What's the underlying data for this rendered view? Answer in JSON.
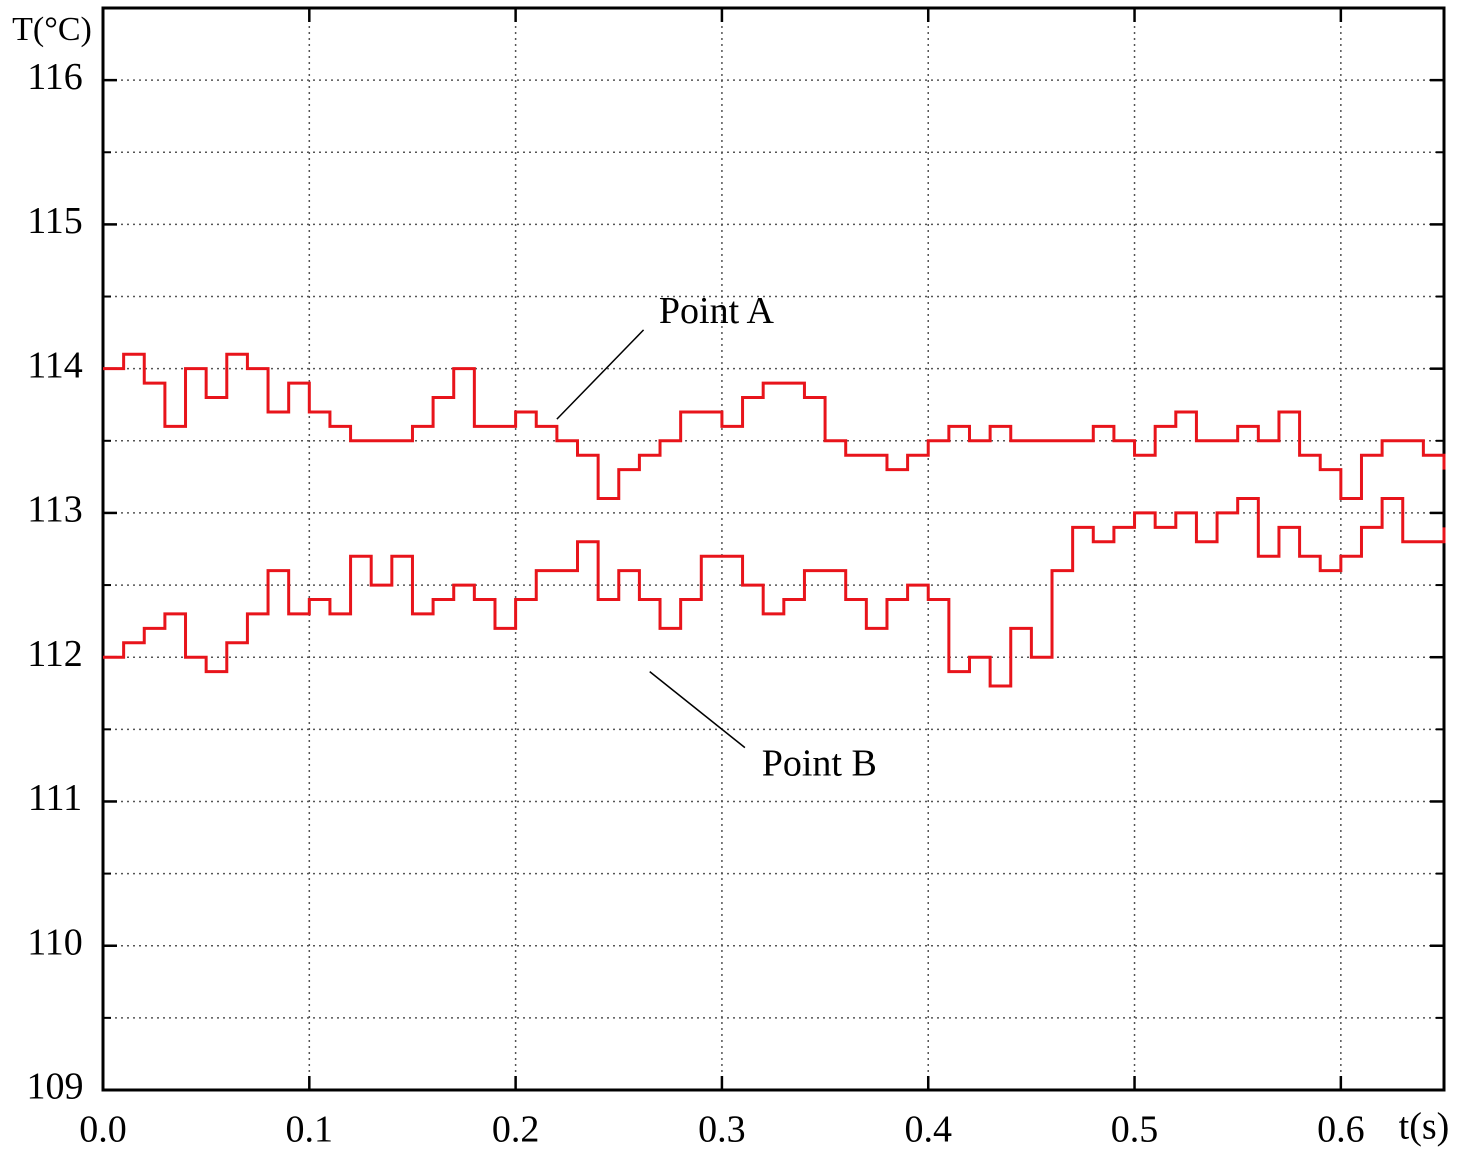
{
  "chart_data": {
    "type": "step",
    "y_label": "T(°C)",
    "x_label": "t(s)",
    "x": [
      0,
      0.01,
      0.02,
      0.03,
      0.04,
      0.05,
      0.06,
      0.07,
      0.08,
      0.09,
      0.1,
      0.11,
      0.12,
      0.13,
      0.14,
      0.15,
      0.16,
      0.17,
      0.18,
      0.19,
      0.2,
      0.21,
      0.22,
      0.23,
      0.24,
      0.25,
      0.26,
      0.27,
      0.28,
      0.29,
      0.3,
      0.31,
      0.32,
      0.33,
      0.34,
      0.35,
      0.36,
      0.37,
      0.38,
      0.39,
      0.4,
      0.41,
      0.42,
      0.43,
      0.44,
      0.45,
      0.46,
      0.47,
      0.48,
      0.49,
      0.5,
      0.51,
      0.52,
      0.53,
      0.54,
      0.55,
      0.56,
      0.57,
      0.58,
      0.59,
      0.6,
      0.61,
      0.62,
      0.63,
      0.64,
      0.65
    ],
    "series": [
      {
        "color": "#e8141b",
        "values": [
          114.0,
          114.1,
          113.9,
          113.6,
          114.0,
          113.8,
          114.1,
          114.0,
          113.7,
          113.9,
          113.7,
          113.6,
          113.5,
          113.5,
          113.5,
          113.6,
          113.8,
          114.0,
          113.6,
          113.6,
          113.7,
          113.6,
          113.5,
          113.4,
          113.1,
          113.3,
          113.4,
          113.5,
          113.7,
          113.7,
          113.6,
          113.8,
          113.9,
          113.9,
          113.8,
          113.5,
          113.4,
          113.4,
          113.3,
          113.4,
          113.5,
          113.6,
          113.5,
          113.6,
          113.5,
          113.5,
          113.5,
          113.5,
          113.6,
          113.5,
          113.4,
          113.6,
          113.7,
          113.5,
          113.5,
          113.6,
          113.5,
          113.7,
          113.4,
          113.3,
          113.1,
          113.4,
          113.5,
          113.5,
          113.4,
          113.3
        ]
      },
      {
        "color": "#e8141b",
        "values": [
          112.0,
          112.1,
          112.2,
          112.3,
          112.0,
          111.9,
          112.1,
          112.3,
          112.6,
          112.3,
          112.4,
          112.3,
          112.7,
          112.5,
          112.7,
          112.3,
          112.4,
          112.5,
          112.4,
          112.2,
          112.4,
          112.6,
          112.6,
          112.8,
          112.4,
          112.6,
          112.4,
          112.2,
          112.4,
          112.7,
          112.7,
          112.5,
          112.3,
          112.4,
          112.6,
          112.6,
          112.4,
          112.2,
          112.4,
          112.5,
          112.4,
          111.9,
          112.0,
          111.8,
          112.2,
          112.0,
          112.6,
          112.9,
          112.8,
          112.9,
          113.0,
          112.9,
          113.0,
          112.8,
          113.0,
          113.1,
          112.7,
          112.9,
          112.7,
          112.6,
          112.7,
          112.9,
          113.1,
          112.8,
          112.8,
          112.9
        ]
      }
    ],
    "annotations": [
      {
        "text": "Point A",
        "x": 0.22,
        "y": 113.65
      },
      {
        "text": "Point B",
        "x": 0.265,
        "y": 111.9
      }
    ],
    "xlim": [
      0,
      0.65
    ],
    "ylim": [
      109,
      116.5
    ],
    "xticks": [
      {
        "value": 0,
        "label": "0.0"
      },
      0.1,
      0.2,
      0.3,
      0.4,
      0.5,
      0.6
    ],
    "yticks": [
      109,
      110,
      111,
      112,
      113,
      114,
      115,
      116
    ],
    "grid": true
  }
}
